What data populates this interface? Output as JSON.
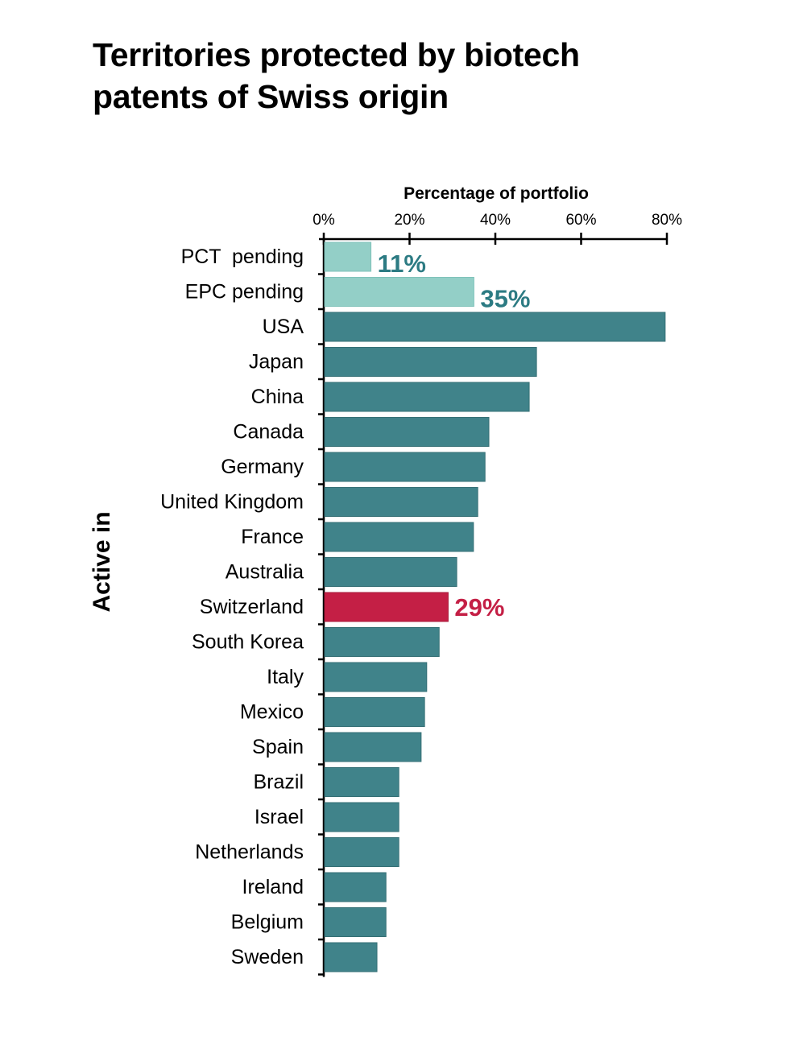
{
  "chart_data": {
    "type": "bar",
    "orientation": "horizontal",
    "title": "Territories protected by biotech patents of Swiss origin",
    "xlabel": "Percentage of portfolio",
    "ylabel": "Active in",
    "xlim": [
      0,
      80
    ],
    "xticks": [
      "0%",
      "20%",
      "40%",
      "60%",
      "80%"
    ],
    "xtick_values": [
      0,
      20,
      40,
      60,
      80
    ],
    "grid": false,
    "categories": [
      "PCT  pending",
      "EPC pending",
      "USA",
      "Japan",
      "China",
      "Canada",
      "Germany",
      "United Kingdom",
      "France",
      "Australia",
      "Switzerland",
      "South Korea",
      "Italy",
      "Mexico",
      "Spain",
      "Brazil",
      "Israel",
      "Netherlands",
      "Ireland",
      "Belgium",
      "Sweden"
    ],
    "values": [
      11,
      35,
      79.6,
      49.6,
      47.9,
      38.5,
      37.6,
      35.9,
      34.9,
      31,
      29,
      26.9,
      24,
      23.5,
      22.7,
      17.5,
      17.5,
      17.5,
      14.5,
      14.5,
      12.4
    ],
    "bar_kinds": [
      "pending",
      "pending",
      "active",
      "active",
      "active",
      "active",
      "active",
      "active",
      "active",
      "active",
      "highlight",
      "active",
      "active",
      "active",
      "active",
      "active",
      "active",
      "active",
      "active",
      "active",
      "active"
    ],
    "data_labels": [
      {
        "category": "PCT  pending",
        "text": "11%"
      },
      {
        "category": "EPC pending",
        "text": "35%"
      },
      {
        "category": "Switzerland",
        "text": "29%"
      }
    ],
    "colors": {
      "pending": "#93cfc7",
      "active": "#40838a",
      "highlight": "#c41f45",
      "pending_label": "#2c7b83",
      "highlight_label": "#c41f45",
      "axis": "#000000"
    }
  }
}
